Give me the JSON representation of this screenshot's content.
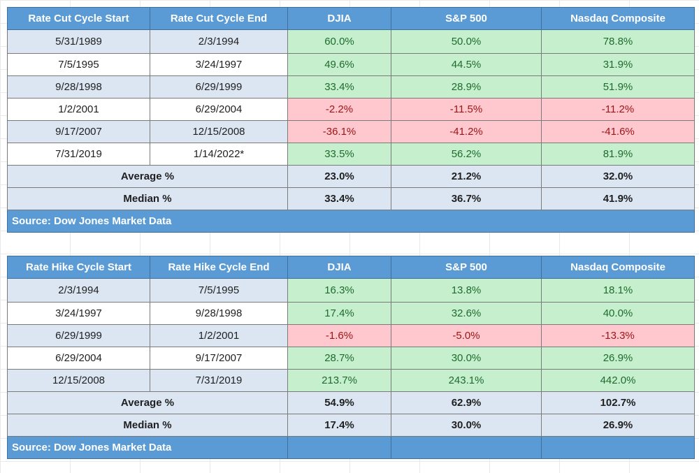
{
  "table1": {
    "headers": [
      "Rate Cut Cycle Start",
      "Rate Cut Cycle End",
      "DJIA",
      "S&P 500",
      "Nasdaq Composite"
    ],
    "rows": [
      {
        "start": "5/31/1989",
        "end": "2/3/1994",
        "djia": "60.0%",
        "sp": "50.0%",
        "nasdaq": "78.8%"
      },
      {
        "start": "7/5/1995",
        "end": "3/24/1997",
        "djia": "49.6%",
        "sp": "44.5%",
        "nasdaq": "31.9%"
      },
      {
        "start": "9/28/1998",
        "end": "6/29/1999",
        "djia": "33.4%",
        "sp": "28.9%",
        "nasdaq": "51.9%"
      },
      {
        "start": "1/2/2001",
        "end": "6/29/2004",
        "djia": "-2.2%",
        "sp": "-11.5%",
        "nasdaq": "-11.2%"
      },
      {
        "start": "9/17/2007",
        "end": "12/15/2008",
        "djia": "-36.1%",
        "sp": "-41.2%",
        "nasdaq": "-41.6%"
      },
      {
        "start": "7/31/2019",
        "end": "1/14/2022*",
        "djia": "33.5%",
        "sp": "56.2%",
        "nasdaq": "81.9%"
      }
    ],
    "average": {
      "label": "Average %",
      "djia": "23.0%",
      "sp": "21.2%",
      "nasdaq": "32.0%"
    },
    "median": {
      "label": "Median %",
      "djia": "33.4%",
      "sp": "36.7%",
      "nasdaq": "41.9%"
    },
    "source": "Source: Dow Jones Market Data"
  },
  "table2": {
    "headers": [
      "Rate Hike Cycle Start",
      "Rate Hike Cycle End",
      "DJIA",
      "S&P 500",
      "Nasdaq Composite"
    ],
    "rows": [
      {
        "start": "2/3/1994",
        "end": "7/5/1995",
        "djia": "16.3%",
        "sp": "13.8%",
        "nasdaq": "18.1%"
      },
      {
        "start": "3/24/1997",
        "end": "9/28/1998",
        "djia": "17.4%",
        "sp": "32.6%",
        "nasdaq": "40.0%"
      },
      {
        "start": "6/29/1999",
        "end": "1/2/2001",
        "djia": "-1.6%",
        "sp": "-5.0%",
        "nasdaq": "-13.3%"
      },
      {
        "start": "6/29/2004",
        "end": "9/17/2007",
        "djia": "28.7%",
        "sp": "30.0%",
        "nasdaq": "26.9%"
      },
      {
        "start": "12/15/2008",
        "end": "7/31/2019",
        "djia": "213.7%",
        "sp": "243.1%",
        "nasdaq": "442.0%"
      }
    ],
    "average": {
      "label": "Average %",
      "djia": "54.9%",
      "sp": "62.9%",
      "nasdaq": "102.7%"
    },
    "median": {
      "label": "Median %",
      "djia": "17.4%",
      "sp": "30.0%",
      "nasdaq": "26.9%"
    },
    "source": "Source: Dow Jones Market Data"
  },
  "colors": {
    "header_blue": "#5b9bd5",
    "alt_row": "#dce6f2",
    "positive_fill": "#c6efce",
    "positive_text": "#1e6b2c",
    "negative_fill": "#ffc7ce",
    "negative_text": "#9c1414"
  }
}
